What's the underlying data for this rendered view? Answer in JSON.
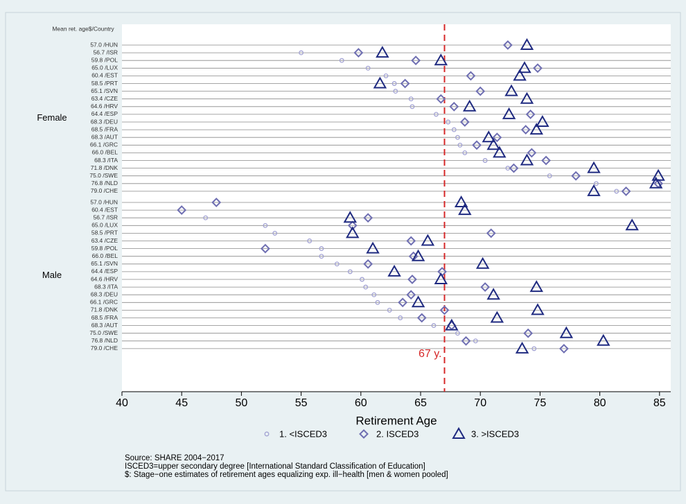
{
  "chart_data": {
    "type": "dot",
    "row_header": "Mean ret. age$/Country",
    "x_label": "Retirement Age",
    "xlim": [
      40,
      85.94
    ],
    "xticks": [
      40,
      45,
      50,
      55,
      60,
      65,
      70,
      75,
      80,
      85
    ],
    "ref_line": {
      "value": 67,
      "label": "67 y.",
      "color": "#d62728"
    },
    "series": [
      {
        "name": "1. <ISCED3",
        "color": "#a3a3d3",
        "marker": "circle"
      },
      {
        "name": "2. ISCED3",
        "color": "#6f6fb2",
        "marker": "diamond"
      },
      {
        "name": "3. >ISCED3",
        "color": "#1f2a80",
        "marker": "triangle"
      }
    ],
    "groups": [
      {
        "name": "Female",
        "categories": [
          "57.0 /HUN",
          "56.7 /ISR",
          "59.8 /POL",
          "65.0 /LUX",
          "60.4 /EST",
          "58.5 /PRT",
          "65.1 /SVN",
          "63.4 /CZE",
          "64.6 /HRV",
          "64.4 /ESP",
          "68.3 /DEU",
          "68.5 /FRA",
          "68.3 /AUT",
          "66.1 /GRC",
          "66.0 /BEL",
          "68.3 /ITA",
          "71.8 /DNK",
          "75.0 /SWE",
          "76.8 /NLD",
          "79.0 /CHE"
        ],
        "values": [
          [
            null,
            55.0,
            58.4,
            60.6,
            62.1,
            62.8,
            62.9,
            64.2,
            64.3,
            66.3,
            67.3,
            67.8,
            68.1,
            68.3,
            68.7,
            70.4,
            72.3,
            75.8,
            79.7,
            81.4
          ],
          [
            72.3,
            59.8,
            64.6,
            74.8,
            69.2,
            63.7,
            70.0,
            66.7,
            67.8,
            74.2,
            68.7,
            73.8,
            71.4,
            69.7,
            74.3,
            75.5,
            72.8,
            78.0,
            84.9,
            82.2
          ],
          [
            73.9,
            61.8,
            66.7,
            73.7,
            73.3,
            61.6,
            72.6,
            73.9,
            69.1,
            72.4,
            75.2,
            74.7,
            70.7,
            71.1,
            71.6,
            73.9,
            79.5,
            84.9,
            84.7,
            79.5
          ]
        ]
      },
      {
        "name": "Male",
        "categories": [
          "57.0 /HUN",
          "60.4 /EST",
          "56.7 /ISR",
          "65.0 /LUX",
          "58.5 /PRT",
          "63.4 /CZE",
          "59.8 /POL",
          "66.0 /BEL",
          "65.1 /SVN",
          "64.4 /ESP",
          "64.6 /HRV",
          "68.3 /ITA",
          "68.3 /DEU",
          "66.1 /GRC",
          "71.8 /DNK",
          "68.5 /FRA",
          "68.3 /AUT",
          "75.0 /SWE",
          "76.8 /NLD",
          "79.0 /CHE"
        ],
        "values": [
          [
            null,
            null,
            47.0,
            52.0,
            52.8,
            55.7,
            56.7,
            56.7,
            58.0,
            59.1,
            60.1,
            60.4,
            61.1,
            61.4,
            62.4,
            63.3,
            66.1,
            68.1,
            69.6,
            74.5
          ],
          [
            47.9,
            45.0,
            60.6,
            59.3,
            70.9,
            64.2,
            52.0,
            64.4,
            60.6,
            66.8,
            64.3,
            70.4,
            64.2,
            63.5,
            67.0,
            65.1,
            67.6,
            74.0,
            68.8,
            77.0
          ],
          [
            68.4,
            68.7,
            59.1,
            82.7,
            59.3,
            65.6,
            61.0,
            64.8,
            70.2,
            62.8,
            66.7,
            74.7,
            71.1,
            64.8,
            74.8,
            71.4,
            67.6,
            77.2,
            80.3,
            73.5
          ]
        ]
      }
    ],
    "notes": [
      "Source: SHARE 2004−2017",
      "ISCED3=upper secondary degree [International Standard Classification of Education]",
      "$: Stage−one estimates of retirement ages  equalizing exp. ill−health [men & women pooled]"
    ]
  }
}
